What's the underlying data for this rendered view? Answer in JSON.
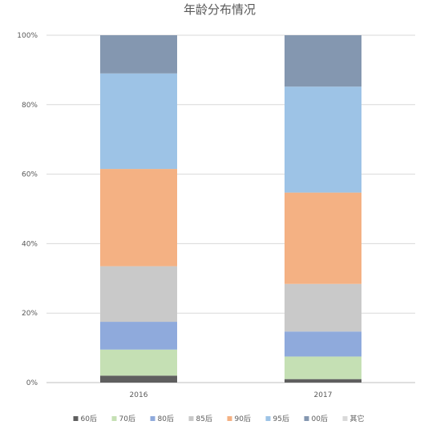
{
  "chart_data": {
    "type": "bar",
    "stacked": true,
    "percent_stacked": true,
    "title": "年龄分布情况",
    "xlabel": "",
    "ylabel": "",
    "ylim": [
      0,
      100
    ],
    "y_ticks": [
      "0%",
      "20%",
      "40%",
      "60%",
      "80%",
      "100%"
    ],
    "grid": true,
    "legend_position": "bottom",
    "categories": [
      "2016",
      "2017"
    ],
    "series": [
      {
        "name": "60后",
        "color": "#5f5f5f",
        "values": [
          2.0,
          1.0
        ]
      },
      {
        "name": "70后",
        "color": "#c5e0b4",
        "values": [
          7.5,
          6.5
        ]
      },
      {
        "name": "80后",
        "color": "#8faadc",
        "values": [
          8.0,
          7.2
        ]
      },
      {
        "name": "85后",
        "color": "#c9c9c9",
        "values": [
          16.0,
          13.7
        ]
      },
      {
        "name": "90后",
        "color": "#f4b183",
        "values": [
          28.0,
          26.3
        ]
      },
      {
        "name": "95后",
        "color": "#9dc3e6",
        "values": [
          27.5,
          30.5
        ]
      },
      {
        "name": "00后",
        "color": "#8497b0",
        "values": [
          11.0,
          14.8
        ]
      },
      {
        "name": "其它",
        "color": "#d9d9d9",
        "values": [
          0,
          0
        ]
      }
    ]
  }
}
